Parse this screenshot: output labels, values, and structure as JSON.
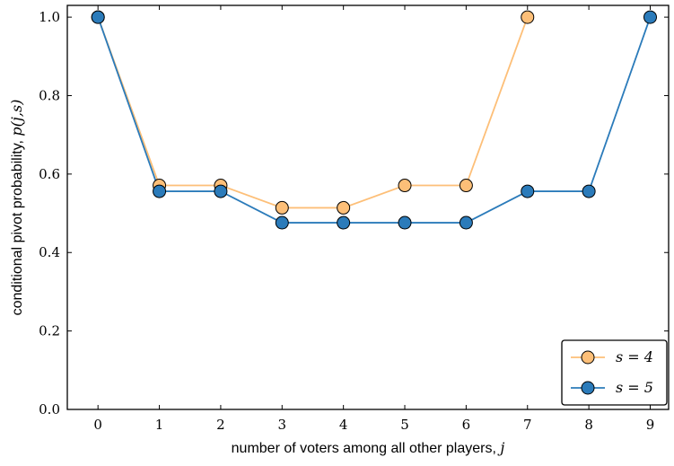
{
  "chart_data": {
    "type": "line",
    "title": "",
    "xlabel": "number of voters among all other players, j",
    "xlabel_text": "number of voters among all other players, ",
    "xlabel_var": "j",
    "ylabel": "conditional pivot probability, p(j,s)",
    "ylabel_text": "conditional pivot probability, ",
    "ylabel_var": "p(j,s)",
    "x": [
      0,
      1,
      2,
      3,
      4,
      5,
      6,
      7,
      8,
      9
    ],
    "xlim": [
      -0.5,
      9.3
    ],
    "ylim": [
      0.0,
      1.03
    ],
    "xticks": [
      "0",
      "1",
      "2",
      "3",
      "4",
      "5",
      "6",
      "7",
      "8",
      "9"
    ],
    "yticks": [
      "0.0",
      "0.2",
      "0.4",
      "0.6",
      "0.8",
      "1.0"
    ],
    "grid": false,
    "legend_position": "lower-right",
    "series": [
      {
        "name": "s = 4",
        "color": "#fdbf78",
        "marker_color": "#fdbf78",
        "x": [
          0,
          1,
          2,
          3,
          4,
          5,
          6,
          7
        ],
        "values": [
          1.0,
          0.571,
          0.571,
          0.514,
          0.514,
          0.571,
          0.571,
          1.0
        ]
      },
      {
        "name": "s = 5",
        "color": "#2b7bba",
        "marker_color": "#2b7bba",
        "x": [
          0,
          1,
          2,
          3,
          4,
          5,
          6,
          7,
          8,
          9
        ],
        "values": [
          1.0,
          0.556,
          0.556,
          0.476,
          0.476,
          0.476,
          0.476,
          0.556,
          0.556,
          1.0
        ]
      }
    ]
  }
}
